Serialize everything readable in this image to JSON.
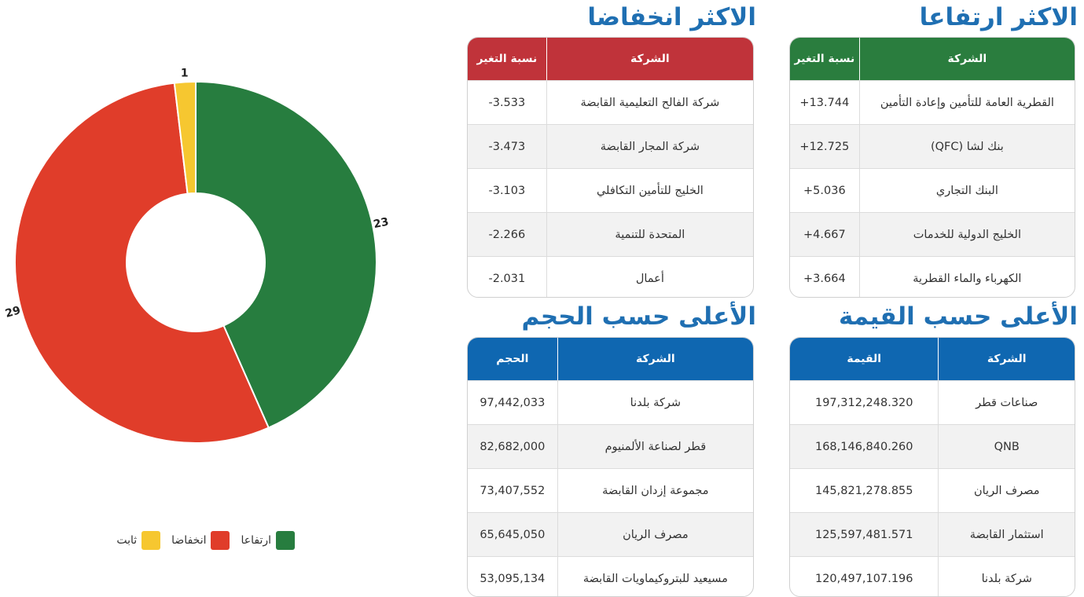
{
  "sections": {
    "gainers": {
      "title": "الاكثر ارتفاعا",
      "col_company": "الشركة",
      "col_value": "نسبة التغير",
      "rows": [
        {
          "company": "القطرية العامة للتأمين وإعادة التأمين",
          "value": "+13.744"
        },
        {
          "company": "بنك لشا (QFC)",
          "value": "+12.725"
        },
        {
          "company": "البنك التجاري",
          "value": "+5.036"
        },
        {
          "company": "الخليج الدولية للخدمات",
          "value": "+4.667"
        },
        {
          "company": "الكهرباء والماء القطرية",
          "value": "+3.664"
        }
      ]
    },
    "losers": {
      "title": "الاكثر انخفاضا",
      "col_company": "الشركة",
      "col_value": "نسبة التغير",
      "rows": [
        {
          "company": "شركة الفالح التعليمية القابضة",
          "value": "-3.533"
        },
        {
          "company": "شركة المجار القابضة",
          "value": "-3.473"
        },
        {
          "company": "الخليج للتأمين التكافلي",
          "value": "-3.103"
        },
        {
          "company": "المتحدة للتنمية",
          "value": "-2.266"
        },
        {
          "company": "أعمال",
          "value": "-2.031"
        }
      ]
    },
    "by_value": {
      "title": "الأعلى حسب القيمة",
      "col_company": "الشركة",
      "col_value": "القيمة",
      "rows": [
        {
          "company": "صناعات قطر",
          "value": "197,312,248.320"
        },
        {
          "company": "QNB",
          "value": "168,146,840.260"
        },
        {
          "company": "مصرف الريان",
          "value": "145,821,278.855"
        },
        {
          "company": "استثمار القابضة",
          "value": "125,597,481.571"
        },
        {
          "company": "شركة بلدنا",
          "value": "120,497,107.196"
        }
      ]
    },
    "by_volume": {
      "title": "الأعلى حسب الحجم",
      "col_company": "الشركة",
      "col_value": "الحجم",
      "rows": [
        {
          "company": "شركة بلدنا",
          "value": "97,442,033"
        },
        {
          "company": "قطر لصناعة الألمنيوم",
          "value": "82,682,000"
        },
        {
          "company": "مجموعة إزدان القابضة",
          "value": "73,407,552"
        },
        {
          "company": "مصرف الريان",
          "value": "65,645,050"
        },
        {
          "company": "مسيعيد للبتروكيماويات القابضة",
          "value": "53,095,134"
        }
      ]
    }
  },
  "chart_data": {
    "type": "pie",
    "donut": true,
    "title": "",
    "series": [
      {
        "name": "ارتفاعا",
        "value": 23,
        "color": "#277d3f"
      },
      {
        "name": "انخفاضا",
        "value": 29,
        "color": "#e03d2a"
      },
      {
        "name": "ثابت",
        "value": 1,
        "color": "#f6c730"
      }
    ],
    "legend_position": "bottom"
  }
}
